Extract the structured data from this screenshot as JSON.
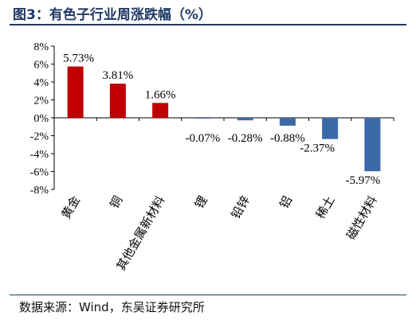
{
  "header": {
    "title": "图3：有色子行业周涨跌幅（%）"
  },
  "footer": {
    "source": "数据来源：Wind，东吴证券研究所"
  },
  "chart_data": {
    "type": "bar",
    "title": "图3：有色子行业周涨跌幅（%）",
    "xlabel": "",
    "ylabel": "",
    "categories": [
      "黄金",
      "铜",
      "其他金属新材料",
      "锂",
      "铅锌",
      "铝",
      "稀土",
      "磁性材料"
    ],
    "values": [
      5.73,
      3.81,
      1.66,
      -0.07,
      -0.28,
      -0.88,
      -2.37,
      -5.97
    ],
    "value_labels": [
      "5.73%",
      "3.81%",
      "1.66%",
      "-0.07%",
      "-0.28%",
      "-0.88%",
      "-2.37%",
      "-5.97%"
    ],
    "ylim": [
      -8,
      8
    ],
    "yticks": [
      8,
      6,
      4,
      2,
      0,
      -2,
      -4,
      -6,
      -8
    ],
    "ytick_labels": [
      "8%",
      "6%",
      "4%",
      "2%",
      "0%",
      "-2%",
      "-4%",
      "-6%",
      "-8%"
    ],
    "grid": false,
    "legend": "none",
    "colors": {
      "positive": "#c00000",
      "negative": "#3c6aa8"
    }
  }
}
